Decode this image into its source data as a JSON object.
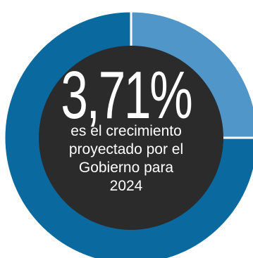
{
  "chart_data": {
    "type": "pie",
    "style": "donut",
    "center_value": "3,71%",
    "center_text": "es el crecimiento\nproyectado por el\nGobierno para\n2024",
    "slices": [
      {
        "value": 25,
        "color": "#5196c8"
      },
      {
        "value": 75,
        "color": "#0a6aa0"
      }
    ],
    "center_color": "#2b2b2b"
  }
}
